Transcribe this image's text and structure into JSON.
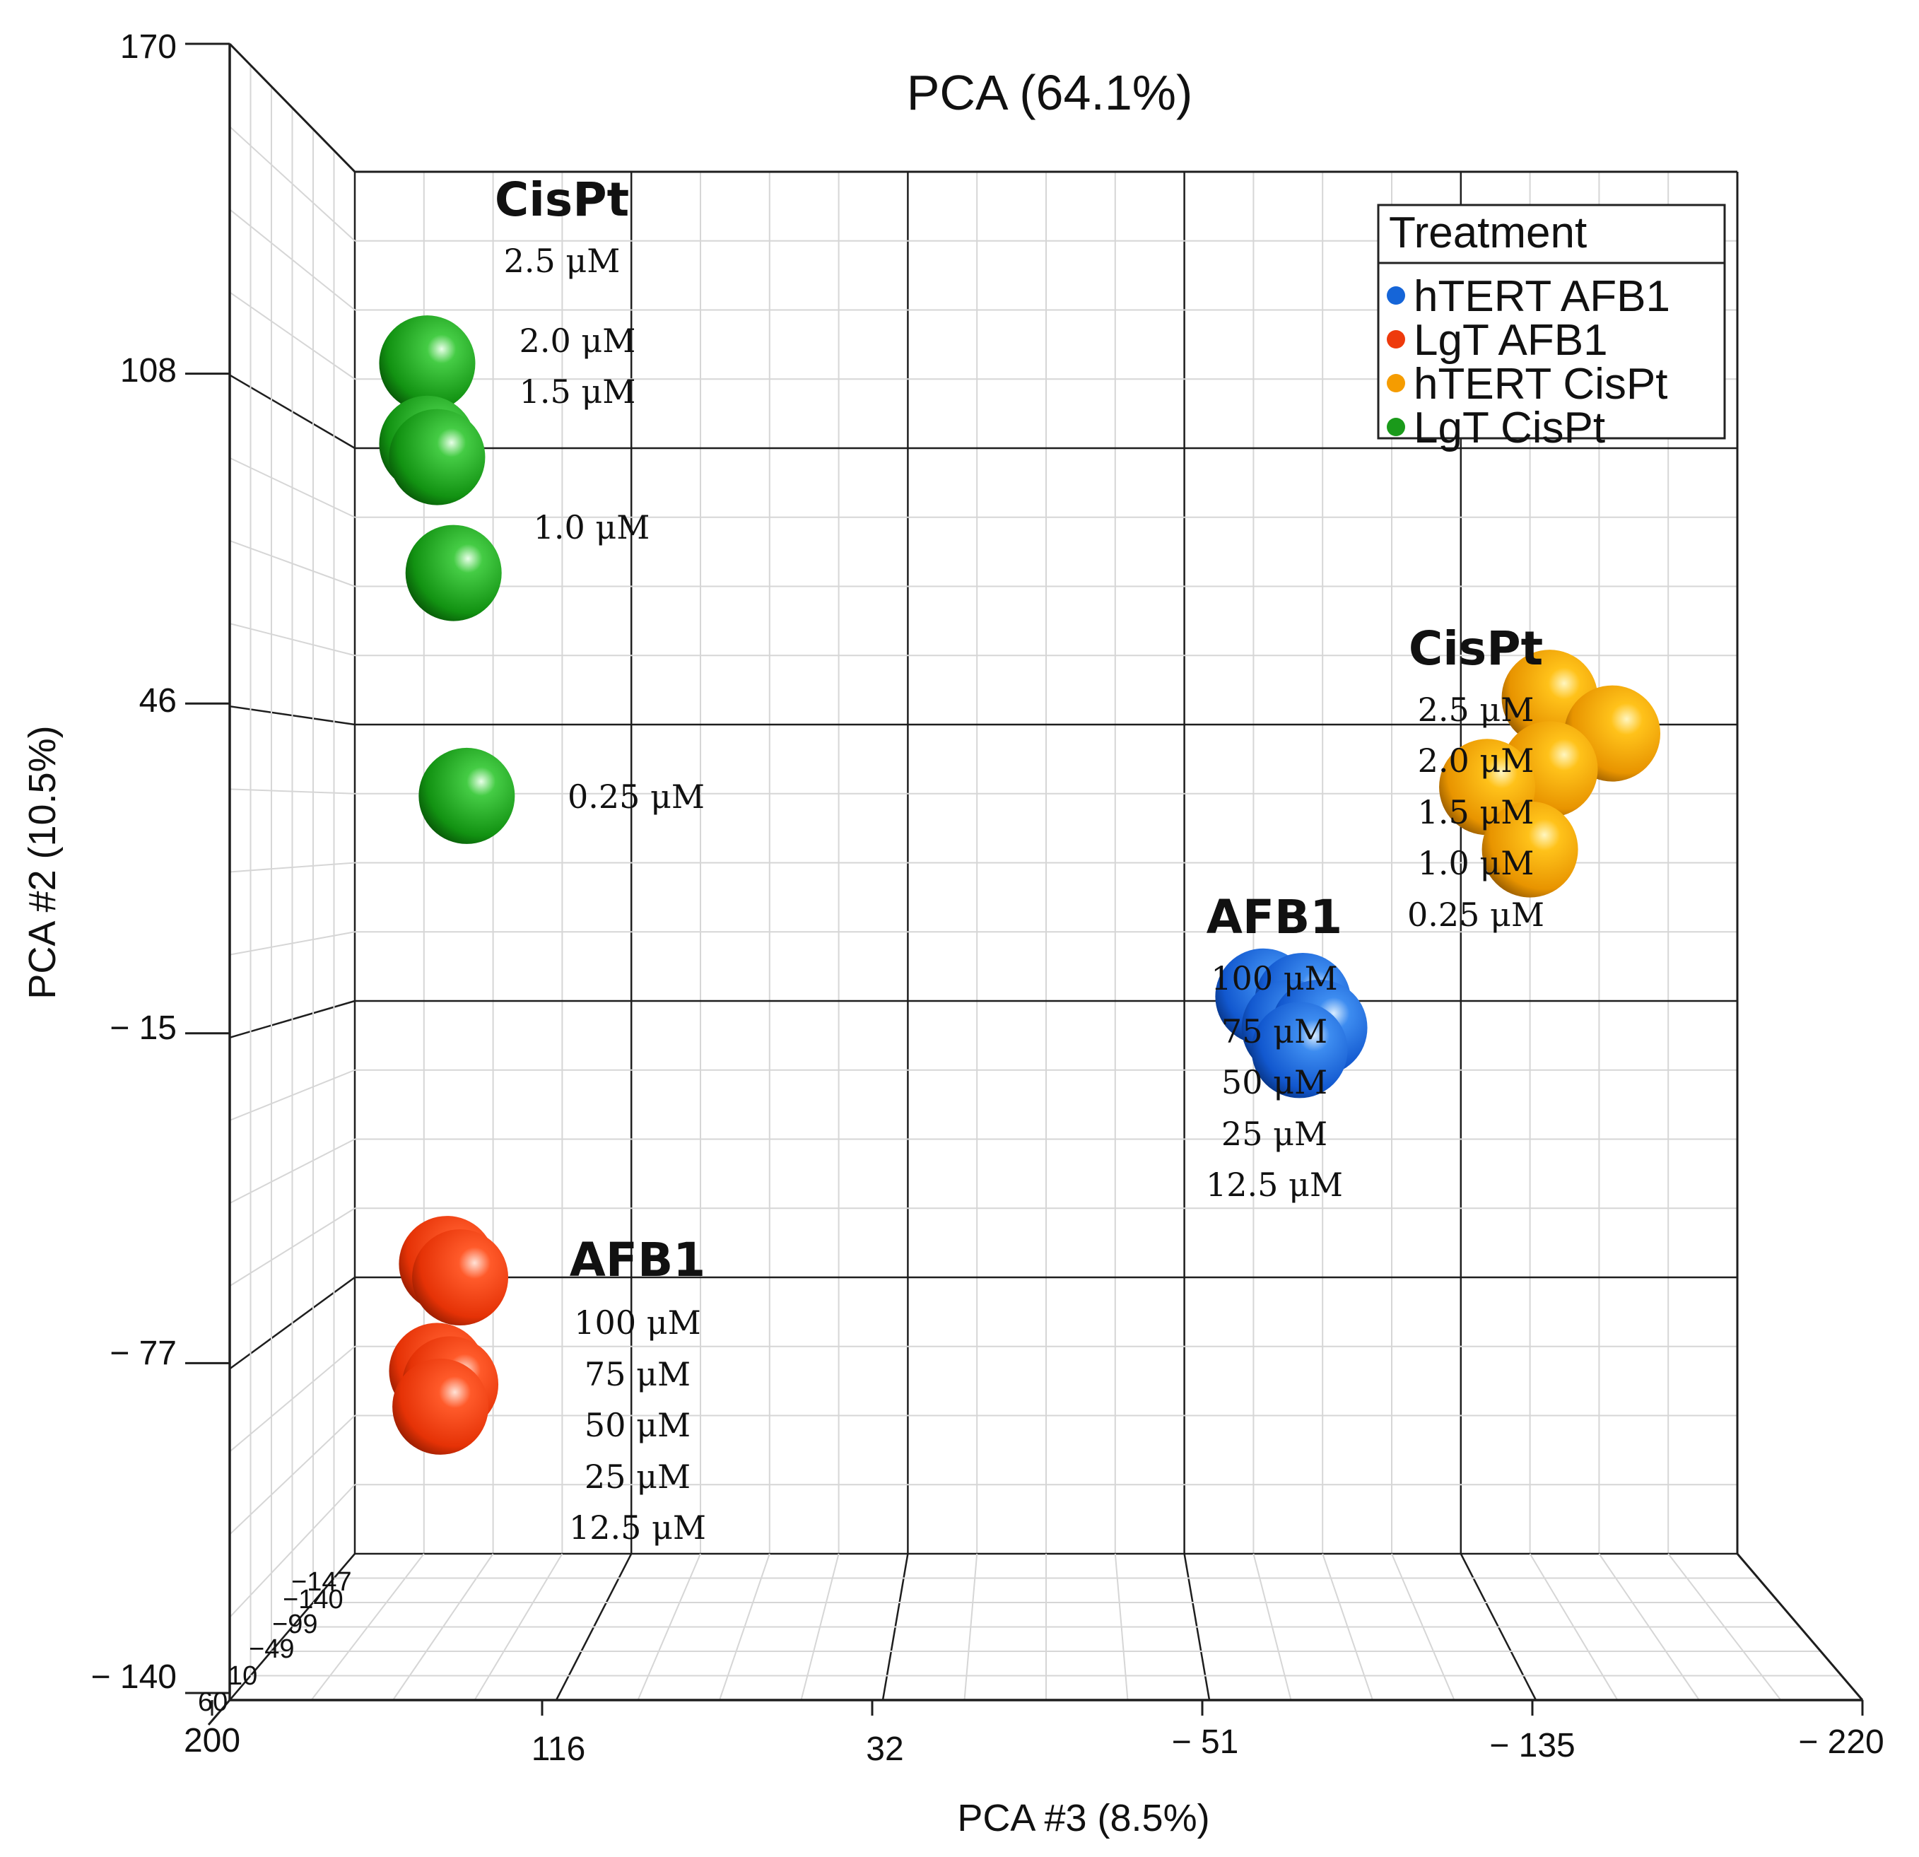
{
  "chart_data": {
    "type": "scatter3d",
    "title": "PCA (64.1%)",
    "xlabel": "PCA #3 (8.5%)",
    "ylabel": "PCA #2 (10.5%)",
    "x_ticks": [
      "200",
      "116",
      "32",
      "− 51",
      "− 135",
      "− 220"
    ],
    "y_ticks": [
      "170",
      "108",
      "46",
      "− 15",
      "− 77",
      "− 140"
    ],
    "z_ticks": [
      "60",
      "10",
      "−49",
      "−99",
      "−140",
      "−147"
    ],
    "xlim": [
      200,
      -220
    ],
    "ylim": [
      -140,
      170
    ],
    "legend": {
      "title": "Treatment",
      "position": "top-right",
      "entries": [
        {
          "name": "hTERT AFB1",
          "color": "#1565d8"
        },
        {
          "name": "LgT AFB1",
          "color": "#ee3a0c"
        },
        {
          "name": "hTERT CisPt",
          "color": "#f59c00"
        },
        {
          "name": "LgT CisPt",
          "color": "#1a9a1a"
        }
      ]
    },
    "series": [
      {
        "name": "LgT CisPt",
        "color": "#1a9a1a",
        "points": [
          {
            "x": 178,
            "y": 127
          },
          {
            "x": 178,
            "y": 109
          },
          {
            "x": 175,
            "y": 106
          },
          {
            "x": 170,
            "y": 80
          },
          {
            "x": 166,
            "y": 30
          }
        ]
      },
      {
        "name": "hTERT CisPt",
        "color": "#f59c00",
        "points": [
          {
            "x": -163,
            "y": 52
          },
          {
            "x": -182,
            "y": 44
          },
          {
            "x": -163,
            "y": 36
          },
          {
            "x": -144,
            "y": 32
          },
          {
            "x": -157,
            "y": 18
          }
        ]
      },
      {
        "name": "hTERT AFB1",
        "color": "#1565d8",
        "points": [
          {
            "x": -76,
            "y": -15
          },
          {
            "x": -88,
            "y": -16
          },
          {
            "x": -84,
            "y": -22
          },
          {
            "x": -93,
            "y": -22
          },
          {
            "x": -87,
            "y": -27
          }
        ]
      },
      {
        "name": "LgT AFB1",
        "color": "#ee3a0c",
        "points": [
          {
            "x": 172,
            "y": -75
          },
          {
            "x": 168,
            "y": -78
          },
          {
            "x": 175,
            "y": -99
          },
          {
            "x": 171,
            "y": -102
          },
          {
            "x": 174,
            "y": -107
          }
        ]
      }
    ],
    "annotations": [
      {
        "id": "lgt-cispt",
        "title": "CisPt",
        "lines": [
          "2.5 μM"
        ]
      },
      {
        "id": "lgt-cispt-2",
        "lines": [
          "2.0 μM",
          "1.5 μM"
        ]
      },
      {
        "id": "lgt-cispt-3",
        "lines": [
          "1.0 μM"
        ]
      },
      {
        "id": "lgt-cispt-4",
        "lines": [
          "0.25 μM"
        ]
      },
      {
        "id": "htert-cispt",
        "title": "CisPt",
        "lines": [
          "2.5 μM",
          "2.0 μM",
          "1.5 μM",
          "1.0 μM",
          "0.25 μM"
        ]
      },
      {
        "id": "htert-afb1",
        "title": "AFB1",
        "lines": [
          "100 μM",
          "75 μM",
          "50 μM",
          "25 μM",
          "12.5 μM"
        ]
      },
      {
        "id": "lgt-afb1",
        "title": "AFB1",
        "lines": [
          "100 μM",
          "75 μM",
          "50 μM",
          "25 μM",
          "12.5 μM"
        ]
      }
    ]
  }
}
